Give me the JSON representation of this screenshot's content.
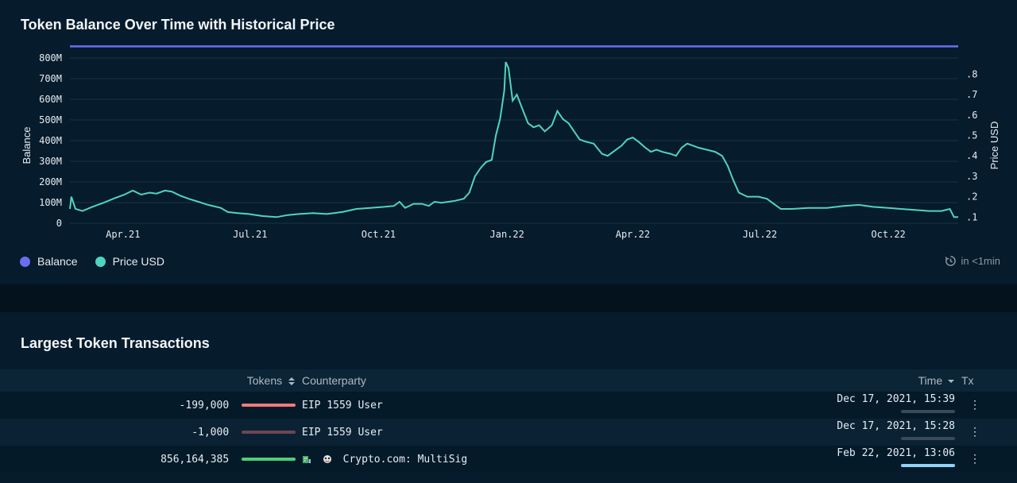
{
  "chart_section": {
    "title": "Token Balance Over Time with Historical Price",
    "refresh_text": "in <1min"
  },
  "chart_data": {
    "type": "line",
    "title": "Token Balance Over Time with Historical Price",
    "x_ticks": [
      "Apr.21",
      "Jul.21",
      "Oct.21",
      "Jan.22",
      "Apr.22",
      "Jul.22",
      "Oct.22"
    ],
    "y_left_label": "Balance",
    "y_left_ticks": [
      "0",
      "100M",
      "200M",
      "300M",
      "400M",
      "500M",
      "600M",
      "700M",
      "800M"
    ],
    "y_left_range": [
      0,
      850000000
    ],
    "y_right_label": "Price USD",
    "y_right_ticks": [
      ".1",
      ".2",
      ".3",
      ".4",
      ".5",
      ".6",
      ".7",
      ".8"
    ],
    "y_right_range": [
      0.07,
      0.93
    ],
    "x_range": [
      "2021-02-22",
      "2022-11-20"
    ],
    "grid": true,
    "legend_position": "bottom-left",
    "series": [
      {
        "name": "Balance",
        "color": "#6870f0",
        "points": [
          [
            "2021-02-22",
            856164385
          ],
          [
            "2022-11-20",
            856164385
          ]
        ]
      },
      {
        "name": "Price USD",
        "color": "#50d4c0",
        "points": [
          [
            "2021-02-22",
            0.14
          ],
          [
            "2021-02-23",
            0.2
          ],
          [
            "2021-02-26",
            0.14
          ],
          [
            "2021-03-03",
            0.13
          ],
          [
            "2021-03-10",
            0.15
          ],
          [
            "2021-03-18",
            0.17
          ],
          [
            "2021-03-25",
            0.19
          ],
          [
            "2021-04-02",
            0.21
          ],
          [
            "2021-04-08",
            0.23
          ],
          [
            "2021-04-14",
            0.21
          ],
          [
            "2021-04-20",
            0.22
          ],
          [
            "2021-04-25",
            0.215
          ],
          [
            "2021-05-01",
            0.23
          ],
          [
            "2021-05-06",
            0.225
          ],
          [
            "2021-05-12",
            0.205
          ],
          [
            "2021-05-18",
            0.19
          ],
          [
            "2021-05-25",
            0.175
          ],
          [
            "2021-06-01",
            0.16
          ],
          [
            "2021-06-10",
            0.145
          ],
          [
            "2021-06-15",
            0.125
          ],
          [
            "2021-06-22",
            0.12
          ],
          [
            "2021-06-30",
            0.115
          ],
          [
            "2021-07-10",
            0.105
          ],
          [
            "2021-07-20",
            0.1
          ],
          [
            "2021-07-28",
            0.11
          ],
          [
            "2021-08-05",
            0.115
          ],
          [
            "2021-08-15",
            0.12
          ],
          [
            "2021-08-25",
            0.115
          ],
          [
            "2021-09-05",
            0.125
          ],
          [
            "2021-09-15",
            0.14
          ],
          [
            "2021-09-25",
            0.145
          ],
          [
            "2021-10-05",
            0.15
          ],
          [
            "2021-10-12",
            0.155
          ],
          [
            "2021-10-16",
            0.175
          ],
          [
            "2021-10-20",
            0.145
          ],
          [
            "2021-10-26",
            0.165
          ],
          [
            "2021-11-01",
            0.165
          ],
          [
            "2021-11-06",
            0.155
          ],
          [
            "2021-11-10",
            0.175
          ],
          [
            "2021-11-15",
            0.17
          ],
          [
            "2021-11-20",
            0.175
          ],
          [
            "2021-11-25",
            0.18
          ],
          [
            "2021-12-01",
            0.19
          ],
          [
            "2021-12-05",
            0.22
          ],
          [
            "2021-12-09",
            0.3
          ],
          [
            "2021-12-13",
            0.34
          ],
          [
            "2021-12-17",
            0.37
          ],
          [
            "2021-12-21",
            0.38
          ],
          [
            "2021-12-24",
            0.5
          ],
          [
            "2021-12-27",
            0.58
          ],
          [
            "2021-12-30",
            0.72
          ],
          [
            "2021-12-31",
            0.86
          ],
          [
            "2022-01-02",
            0.83
          ],
          [
            "2022-01-05",
            0.67
          ],
          [
            "2022-01-08",
            0.7
          ],
          [
            "2022-01-12",
            0.63
          ],
          [
            "2022-01-16",
            0.56
          ],
          [
            "2022-01-20",
            0.54
          ],
          [
            "2022-01-24",
            0.55
          ],
          [
            "2022-01-28",
            0.52
          ],
          [
            "2022-02-02",
            0.55
          ],
          [
            "2022-02-06",
            0.62
          ],
          [
            "2022-02-10",
            0.58
          ],
          [
            "2022-02-14",
            0.56
          ],
          [
            "2022-02-18",
            0.52
          ],
          [
            "2022-02-22",
            0.48
          ],
          [
            "2022-02-26",
            0.47
          ],
          [
            "2022-03-04",
            0.46
          ],
          [
            "2022-03-10",
            0.41
          ],
          [
            "2022-03-14",
            0.4
          ],
          [
            "2022-03-18",
            0.42
          ],
          [
            "2022-03-24",
            0.45
          ],
          [
            "2022-03-28",
            0.48
          ],
          [
            "2022-04-01",
            0.49
          ],
          [
            "2022-04-05",
            0.47
          ],
          [
            "2022-04-10",
            0.44
          ],
          [
            "2022-04-14",
            0.42
          ],
          [
            "2022-04-18",
            0.43
          ],
          [
            "2022-04-22",
            0.42
          ],
          [
            "2022-04-28",
            0.41
          ],
          [
            "2022-05-02",
            0.4
          ],
          [
            "2022-05-06",
            0.44
          ],
          [
            "2022-05-10",
            0.46
          ],
          [
            "2022-05-14",
            0.45
          ],
          [
            "2022-05-18",
            0.44
          ],
          [
            "2022-05-24",
            0.43
          ],
          [
            "2022-05-30",
            0.42
          ],
          [
            "2022-06-04",
            0.4
          ],
          [
            "2022-06-08",
            0.35
          ],
          [
            "2022-06-12",
            0.28
          ],
          [
            "2022-06-16",
            0.22
          ],
          [
            "2022-06-22",
            0.2
          ],
          [
            "2022-06-30",
            0.2
          ],
          [
            "2022-07-06",
            0.19
          ],
          [
            "2022-07-12",
            0.16
          ],
          [
            "2022-07-16",
            0.14
          ],
          [
            "2022-07-24",
            0.14
          ],
          [
            "2022-08-05",
            0.145
          ],
          [
            "2022-08-18",
            0.145
          ],
          [
            "2022-08-30",
            0.155
          ],
          [
            "2022-09-10",
            0.16
          ],
          [
            "2022-09-20",
            0.15
          ],
          [
            "2022-10-01",
            0.145
          ],
          [
            "2022-10-10",
            0.14
          ],
          [
            "2022-10-20",
            0.135
          ],
          [
            "2022-10-30",
            0.13
          ],
          [
            "2022-11-08",
            0.13
          ],
          [
            "2022-11-14",
            0.14
          ],
          [
            "2022-11-17",
            0.1
          ],
          [
            "2022-11-20",
            0.1
          ]
        ]
      }
    ]
  },
  "legend": {
    "balance_label": "Balance",
    "price_label": "Price USD",
    "balance_color": "#6870f0",
    "price_color": "#50d4c0"
  },
  "tx_section": {
    "title": "Largest Token Transactions",
    "columns": {
      "tokens": "Tokens",
      "counterparty": "Counterparty",
      "time": "Time",
      "tx": "Tx"
    },
    "rows": [
      {
        "tokens": "-199,000",
        "bar_color": "#f07b7b",
        "bar_fraction": 1.0,
        "counterparty": "EIP 1559 User",
        "time": "Dec 17, 2021, 15:39",
        "time_bar_color": "#3a4a58",
        "menu": "⋮"
      },
      {
        "tokens": "-1,000",
        "bar_color": "#6b4752",
        "bar_fraction": 1.0,
        "counterparty": "EIP 1559 User",
        "time": "Dec 17, 2021, 15:28",
        "time_bar_color": "#3a4a58",
        "menu": "⋮"
      },
      {
        "tokens": "856,164,385",
        "bar_color": "#4cd07a",
        "bar_fraction": 1.0,
        "counterparty": "Crypto.com: MultiSig",
        "time": "Feb 22, 2021, 13:06",
        "time_bar_color": "#8fd2f8",
        "menu": "⋮",
        "counterparty_icons": [
          "exchange-icon",
          "ghost-icon"
        ]
      }
    ]
  }
}
